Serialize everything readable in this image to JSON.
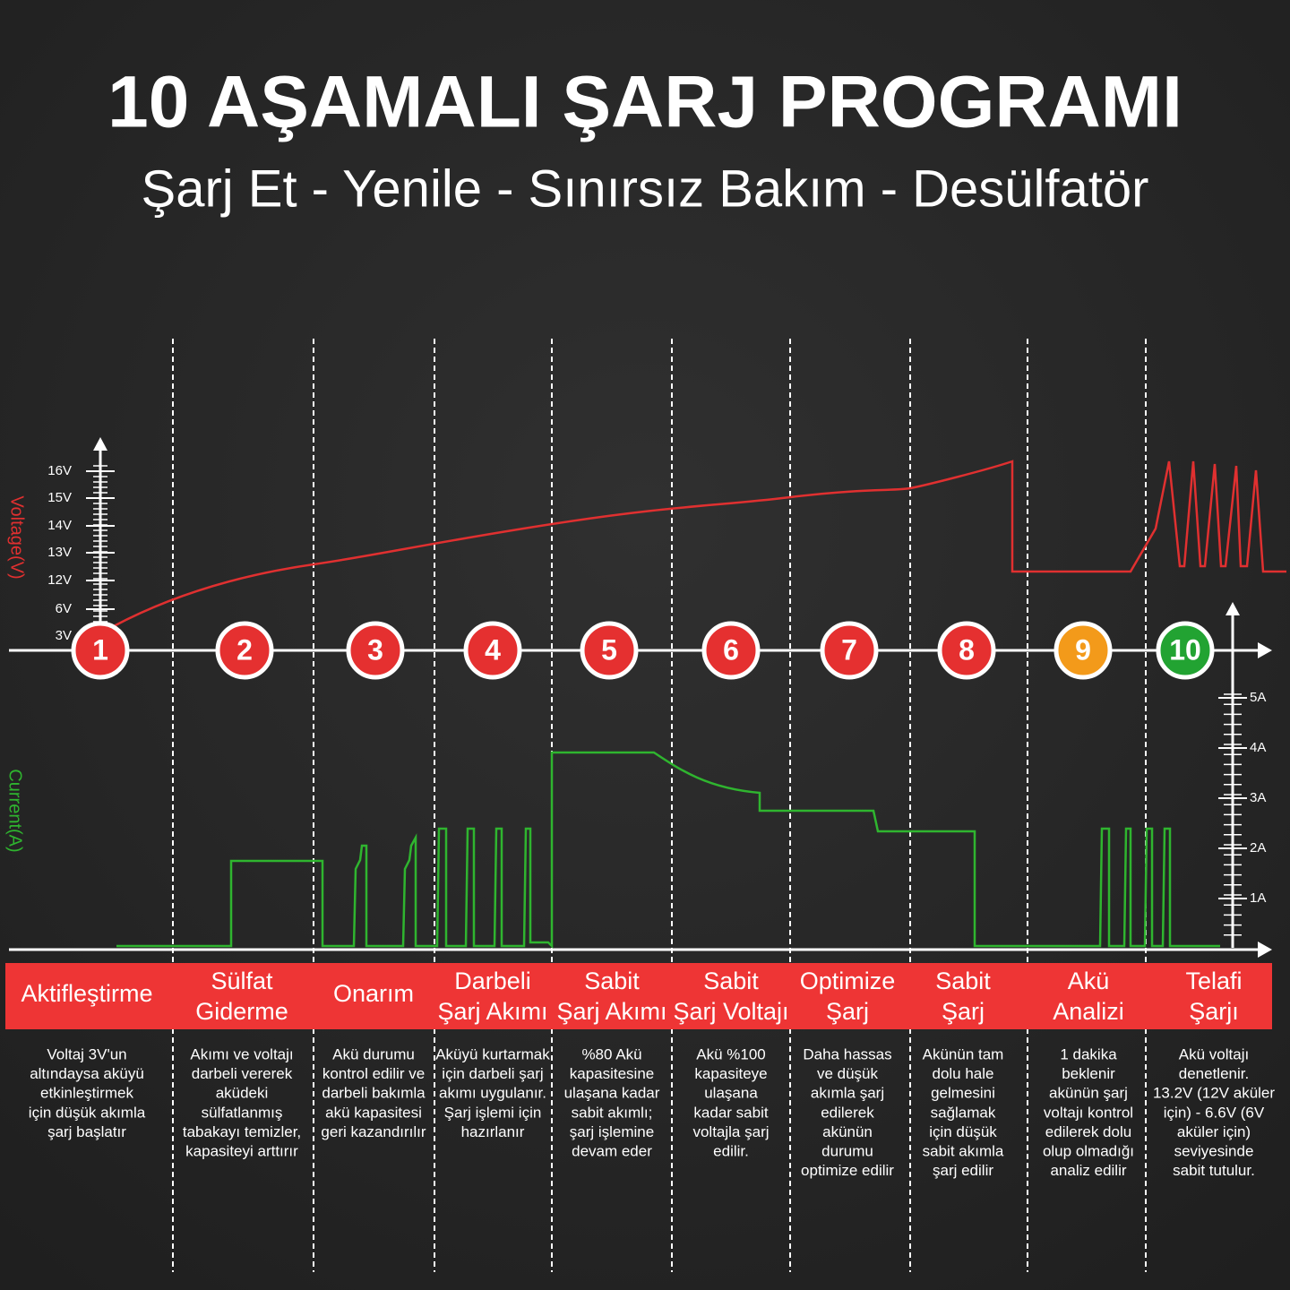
{
  "title": "10 AŞAMALI ŞARJ PROGRAMI",
  "subtitle": "Şarj Et - Yenile - Sınırsız Bakım - Desülfatör",
  "voltage_axis": {
    "label": "Voltage(V)",
    "ticks": [
      "16V",
      "15V",
      "14V",
      "13V",
      "12V",
      "6V",
      "3V"
    ]
  },
  "current_axis": {
    "label": "Current(A)",
    "ticks": [
      "5A",
      "4A",
      "3A",
      "2A",
      "1A"
    ]
  },
  "stages": [
    {
      "number": "1",
      "color": "#e53030",
      "name": [
        "Aktifleştirme"
      ],
      "description": [
        "Voltaj 3V'un",
        "altındaysa aküyü",
        "etkinleştirmek",
        "için düşük akımla",
        "şarj başlatır"
      ]
    },
    {
      "number": "2",
      "color": "#e53030",
      "name": [
        "Sülfat",
        "Giderme"
      ],
      "description": [
        "Akımı ve voltajı",
        "darbeli vererek",
        "aküdeki",
        "sülfatlanmış",
        "tabakayı temizler,",
        "kapasiteyi arttırır"
      ]
    },
    {
      "number": "3",
      "color": "#e53030",
      "name": [
        "Onarım"
      ],
      "description": [
        "Akü durumu",
        "kontrol edilir ve",
        "darbeli bakımla",
        "akü kapasitesi",
        "geri kazandırılır"
      ]
    },
    {
      "number": "4",
      "color": "#e53030",
      "name": [
        "Darbeli",
        "Şarj Akımı"
      ],
      "description": [
        "Aküyü kurtarmak",
        "için darbeli şarj",
        "akımı uygulanır.",
        "Şarj işlemi için",
        "hazırlanır"
      ]
    },
    {
      "number": "5",
      "color": "#e53030",
      "name": [
        "Sabit",
        "Şarj Akımı"
      ],
      "description": [
        "%80 Akü",
        "kapasitesine",
        "ulaşana kadar",
        "sabit akımlı;",
        "şarj işlemine",
        "devam eder"
      ]
    },
    {
      "number": "6",
      "color": "#e53030",
      "name": [
        "Sabit",
        "Şarj Voltajı"
      ],
      "description": [
        "Akü %100",
        "kapasiteye",
        "ulaşana",
        "kadar sabit",
        "voltajla şarj",
        "edilir."
      ]
    },
    {
      "number": "7",
      "color": "#e53030",
      "name": [
        "Optimize",
        "Şarj"
      ],
      "description": [
        "Daha hassas",
        "ve düşük",
        "akımla şarj",
        "edilerek",
        "akünün",
        "durumu",
        "optimize edilir"
      ]
    },
    {
      "number": "8",
      "color": "#e53030",
      "name": [
        "Sabit",
        "Şarj"
      ],
      "description": [
        "Akünün tam",
        "dolu hale",
        "gelmesini",
        "sağlamak",
        "için düşük",
        "sabit akımla",
        "şarj edilir"
      ]
    },
    {
      "number": "9",
      "color": "#f39a1a",
      "name": [
        "Akü",
        "Analizi"
      ],
      "description": [
        "1 dakika",
        "beklenir",
        "akünün şarj",
        "voltajı kontrol",
        "edilerek dolu",
        "olup olmadığı",
        "analiz edilir"
      ]
    },
    {
      "number": "10",
      "color": "#22a332",
      "name": [
        "Telafi",
        "Şarjı"
      ],
      "description": [
        "Akü voltajı",
        "denetlenir.",
        "13.2V (12V aküler",
        "için) - 6.6V (6V",
        "aküler için)",
        "seviyesinde",
        "sabit tutulur."
      ]
    }
  ]
}
